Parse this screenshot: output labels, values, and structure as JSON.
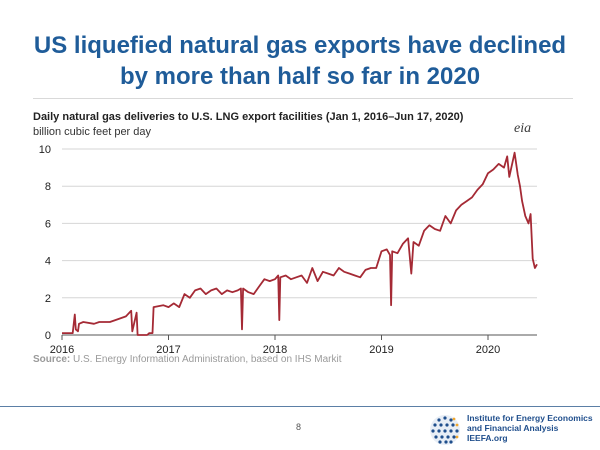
{
  "slide": {
    "title_line1": "US liquefied natural gas exports have declined",
    "title_line2": "by more than half so far in 2020",
    "page_number": "8"
  },
  "logo": {
    "eia_text": "eia",
    "ieefa_line1": "Institute for Energy Economics",
    "ieefa_line2": "and Financial Analysis",
    "ieefa_line3": "IEEFA.org"
  },
  "source": {
    "label": "Source:",
    "text": "U.S. Energy Information Administration, based on IHS Markit"
  },
  "chart_data": {
    "type": "line",
    "title": "Daily natural gas deliveries to U.S. LNG export facilities (Jan 1, 2016–Jun 17, 2020)",
    "ylabel": "billion cubic feet per day",
    "xlabel": "",
    "xlim": [
      2016.0,
      2020.46
    ],
    "ylim": [
      0,
      10
    ],
    "x_ticks": [
      "2016",
      "2017",
      "2018",
      "2019",
      "2020"
    ],
    "y_ticks": [
      "0",
      "2",
      "4",
      "6",
      "8",
      "10"
    ],
    "grid": "horizontal",
    "series": [
      {
        "color": "#a52a35",
        "x": [
          2016.0,
          2016.1,
          2016.12,
          2016.13,
          2016.15,
          2016.16,
          2016.2,
          2016.3,
          2016.35,
          2016.45,
          2016.5,
          2016.6,
          2016.65,
          2016.66,
          2016.7,
          2016.71,
          2016.8,
          2016.82,
          2016.85,
          2016.86,
          2016.95,
          2017.0,
          2017.05,
          2017.1,
          2017.15,
          2017.2,
          2017.25,
          2017.3,
          2017.35,
          2017.4,
          2017.45,
          2017.5,
          2017.55,
          2017.6,
          2017.65,
          2017.68,
          2017.69,
          2017.7,
          2017.75,
          2017.8,
          2017.85,
          2017.9,
          2017.95,
          2018.0,
          2018.03,
          2018.04,
          2018.05,
          2018.1,
          2018.15,
          2018.2,
          2018.25,
          2018.3,
          2018.35,
          2018.4,
          2018.45,
          2018.5,
          2018.55,
          2018.6,
          2018.65,
          2018.7,
          2018.75,
          2018.8,
          2018.85,
          2018.9,
          2018.95,
          2019.0,
          2019.05,
          2019.08,
          2019.09,
          2019.1,
          2019.15,
          2019.2,
          2019.25,
          2019.28,
          2019.3,
          2019.35,
          2019.4,
          2019.45,
          2019.5,
          2019.55,
          2019.6,
          2019.65,
          2019.7,
          2019.75,
          2019.8,
          2019.85,
          2019.9,
          2019.95,
          2020.0,
          2020.05,
          2020.1,
          2020.15,
          2020.18,
          2020.2,
          2020.25,
          2020.28,
          2020.3,
          2020.32,
          2020.35,
          2020.38,
          2020.4,
          2020.42,
          2020.44,
          2020.46
        ],
        "y": [
          0.1,
          0.1,
          1.1,
          0.3,
          0.2,
          0.6,
          0.7,
          0.6,
          0.7,
          0.7,
          0.8,
          1.0,
          1.3,
          0.2,
          1.2,
          0.0,
          0.0,
          0.1,
          0.1,
          1.5,
          1.6,
          1.5,
          1.7,
          1.5,
          2.2,
          2.0,
          2.4,
          2.5,
          2.2,
          2.4,
          2.5,
          2.2,
          2.4,
          2.3,
          2.4,
          2.5,
          0.3,
          2.5,
          2.3,
          2.2,
          2.6,
          3.0,
          2.9,
          3.0,
          3.2,
          0.8,
          3.1,
          3.2,
          3.0,
          3.1,
          3.2,
          2.8,
          3.6,
          2.9,
          3.4,
          3.3,
          3.2,
          3.6,
          3.4,
          3.3,
          3.2,
          3.1,
          3.5,
          3.6,
          3.6,
          4.5,
          4.6,
          4.3,
          1.6,
          4.5,
          4.4,
          4.9,
          5.2,
          3.3,
          5.0,
          4.8,
          5.6,
          5.9,
          5.7,
          5.6,
          6.4,
          6.0,
          6.7,
          7.0,
          7.2,
          7.4,
          7.8,
          8.1,
          8.7,
          8.9,
          9.2,
          9.0,
          9.6,
          8.5,
          9.8,
          8.6,
          8.0,
          7.2,
          6.4,
          6.0,
          6.5,
          4.1,
          3.6,
          3.8
        ]
      }
    ]
  }
}
